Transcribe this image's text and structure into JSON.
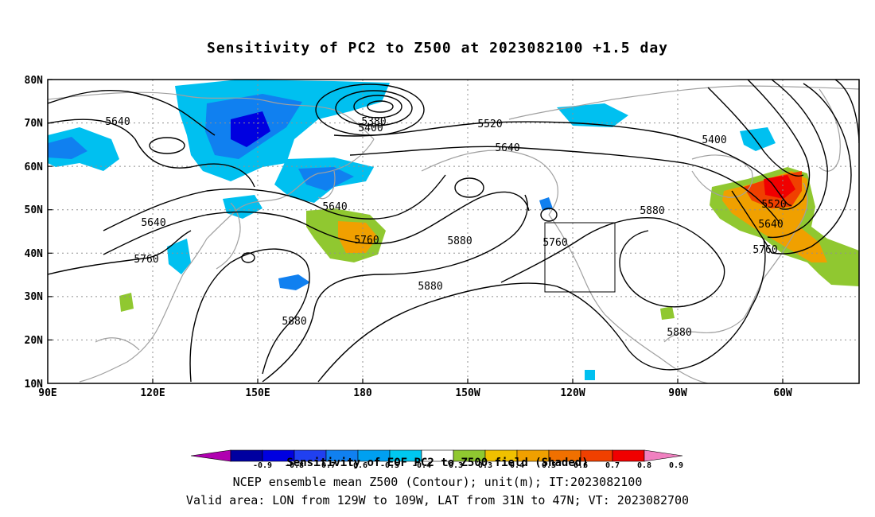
{
  "title": "Sensitivity of PC2 to Z500 at 2023082100 +1.5 day",
  "map": {
    "lat_labels": [
      "80N",
      "70N",
      "60N",
      "50N",
      "40N",
      "30N",
      "20N",
      "10N"
    ],
    "lon_labels": [
      "90E",
      "120E",
      "150E",
      "180",
      "150W",
      "120W",
      "90W",
      "60W"
    ],
    "contour_labels": [
      "5640",
      "5380",
      "5400",
      "5520",
      "5640",
      "5400",
      "5640",
      "5760",
      "5640",
      "5880",
      "5760",
      "5880",
      "5880",
      "5520",
      "5640",
      "5760",
      "5760",
      "5880",
      "5880"
    ],
    "valid_area": {
      "lon_min": "129W",
      "lon_max": "109W",
      "lat_min": "31N",
      "lat_max": "47N"
    },
    "shading_colors": {
      "strong_negative": "#0000e0",
      "negative": "#0060e0",
      "weak_negative": "#00c0f0",
      "weak_positive": "#90c830",
      "positive": "#f0a000",
      "strong_positive": "#f02000"
    },
    "coastline_color": "#a0a0a0"
  },
  "colorbar": {
    "colors": [
      "#b000b0",
      "#0000a0",
      "#0000e0",
      "#2040f0",
      "#1080f0",
      "#00a0f0",
      "#00c8f0",
      "#ffffff",
      "#90c830",
      "#f0c000",
      "#f0a000",
      "#f07000",
      "#f04000",
      "#f00000",
      "#f080c0"
    ],
    "tick_labels": [
      "-0.9",
      "-0.8",
      "-0.7",
      "-0.6",
      "-0.5",
      "-0.4",
      "-0.3",
      "0.3",
      "0.4",
      "0.5",
      "0.6",
      "0.7",
      "0.8",
      "0.9"
    ]
  },
  "captions": {
    "line1": "Sensitivity of EOF PC2 to Z500 field (Shaded)",
    "line2": "NCEP ensemble mean Z500 (Contour); unit(m); IT:2023082100",
    "line3": "Valid area: LON from 129W to 109W, LAT from 31N to 47N; VT: 2023082700"
  }
}
